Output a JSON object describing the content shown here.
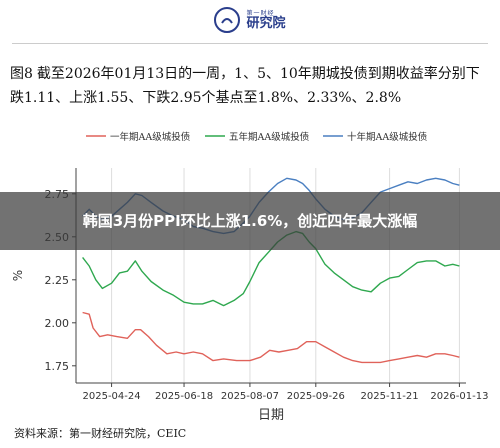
{
  "brand": {
    "sub_text": "第一财经",
    "name": "研究院",
    "icon": "circle-logo-icon"
  },
  "caption": {
    "figure_no": "图8",
    "text": "截至2026年01月13日的一周，1、5、10年期城投债到期收益率分别下跌1.11、上涨1.55、下跌2.95个基点至1.8%、2.33%、2.8%"
  },
  "overlay": {
    "title": "韩国3月份PPI环比上涨1.6%，创近四年最大涨幅"
  },
  "source": {
    "text": "资料来源：第一财经研究院，CEIC"
  },
  "chart_data": {
    "type": "line",
    "xlabel": "日期",
    "ylabel": "%",
    "ylim": [
      1.65,
      2.9
    ],
    "yticks": [
      1.75,
      2.0,
      2.25,
      2.5,
      2.75
    ],
    "ytick_labels": [
      "1.75",
      "2.00",
      "2.25",
      "2.50",
      "2.75"
    ],
    "xticks": [
      "2025-04-24",
      "2025-06-18",
      "2025-08-07",
      "2025-09-26",
      "2025-11-21",
      "2026-01-13"
    ],
    "grid": "vertical",
    "legend_position": "top",
    "series": [
      {
        "name": "一年期AA级城投债",
        "color": "#e0625a",
        "points": [
          [
            "2025-04-02",
            2.06
          ],
          [
            "2025-04-07",
            2.05
          ],
          [
            "2025-04-10",
            1.97
          ],
          [
            "2025-04-15",
            1.92
          ],
          [
            "2025-04-21",
            1.93
          ],
          [
            "2025-04-28",
            1.92
          ],
          [
            "2025-05-06",
            1.91
          ],
          [
            "2025-05-12",
            1.96
          ],
          [
            "2025-05-16",
            1.96
          ],
          [
            "2025-05-22",
            1.92
          ],
          [
            "2025-05-28",
            1.87
          ],
          [
            "2025-06-05",
            1.82
          ],
          [
            "2025-06-12",
            1.83
          ],
          [
            "2025-06-18",
            1.82
          ],
          [
            "2025-06-25",
            1.83
          ],
          [
            "2025-07-02",
            1.82
          ],
          [
            "2025-07-10",
            1.78
          ],
          [
            "2025-07-18",
            1.79
          ],
          [
            "2025-07-28",
            1.78
          ],
          [
            "2025-08-07",
            1.78
          ],
          [
            "2025-08-15",
            1.8
          ],
          [
            "2025-08-22",
            1.84
          ],
          [
            "2025-08-29",
            1.83
          ],
          [
            "2025-09-05",
            1.84
          ],
          [
            "2025-09-12",
            1.85
          ],
          [
            "2025-09-19",
            1.89
          ],
          [
            "2025-09-26",
            1.89
          ],
          [
            "2025-10-03",
            1.86
          ],
          [
            "2025-10-10",
            1.83
          ],
          [
            "2025-10-17",
            1.8
          ],
          [
            "2025-10-24",
            1.78
          ],
          [
            "2025-10-31",
            1.77
          ],
          [
            "2025-11-07",
            1.77
          ],
          [
            "2025-11-14",
            1.77
          ],
          [
            "2025-11-21",
            1.78
          ],
          [
            "2025-11-28",
            1.79
          ],
          [
            "2025-12-05",
            1.8
          ],
          [
            "2025-12-12",
            1.81
          ],
          [
            "2025-12-19",
            1.8
          ],
          [
            "2025-12-26",
            1.82
          ],
          [
            "2026-01-02",
            1.82
          ],
          [
            "2026-01-08",
            1.81
          ],
          [
            "2026-01-13",
            1.8
          ]
        ]
      },
      {
        "name": "五年期AA级城投债",
        "color": "#2fa84f",
        "points": [
          [
            "2025-04-02",
            2.38
          ],
          [
            "2025-04-07",
            2.33
          ],
          [
            "2025-04-12",
            2.25
          ],
          [
            "2025-04-17",
            2.2
          ],
          [
            "2025-04-24",
            2.23
          ],
          [
            "2025-04-30",
            2.29
          ],
          [
            "2025-05-06",
            2.3
          ],
          [
            "2025-05-12",
            2.36
          ],
          [
            "2025-05-17",
            2.3
          ],
          [
            "2025-05-24",
            2.24
          ],
          [
            "2025-06-02",
            2.19
          ],
          [
            "2025-06-10",
            2.16
          ],
          [
            "2025-06-18",
            2.12
          ],
          [
            "2025-06-25",
            2.11
          ],
          [
            "2025-07-02",
            2.11
          ],
          [
            "2025-07-10",
            2.13
          ],
          [
            "2025-07-18",
            2.1
          ],
          [
            "2025-07-26",
            2.13
          ],
          [
            "2025-08-02",
            2.17
          ],
          [
            "2025-08-07",
            2.24
          ],
          [
            "2025-08-14",
            2.35
          ],
          [
            "2025-08-21",
            2.41
          ],
          [
            "2025-08-28",
            2.47
          ],
          [
            "2025-09-04",
            2.51
          ],
          [
            "2025-09-11",
            2.53
          ],
          [
            "2025-09-16",
            2.52
          ],
          [
            "2025-09-21",
            2.47
          ],
          [
            "2025-09-26",
            2.43
          ],
          [
            "2025-10-03",
            2.34
          ],
          [
            "2025-10-10",
            2.29
          ],
          [
            "2025-10-17",
            2.25
          ],
          [
            "2025-10-24",
            2.21
          ],
          [
            "2025-10-31",
            2.19
          ],
          [
            "2025-11-07",
            2.18
          ],
          [
            "2025-11-14",
            2.23
          ],
          [
            "2025-11-21",
            2.26
          ],
          [
            "2025-11-28",
            2.27
          ],
          [
            "2025-12-05",
            2.31
          ],
          [
            "2025-12-12",
            2.35
          ],
          [
            "2025-12-19",
            2.36
          ],
          [
            "2025-12-26",
            2.36
          ],
          [
            "2026-01-02",
            2.33
          ],
          [
            "2026-01-08",
            2.34
          ],
          [
            "2026-01-13",
            2.33
          ]
        ]
      },
      {
        "name": "十年期AA级城投债",
        "color": "#4a7fc1",
        "points": [
          [
            "2025-04-02",
            2.62
          ],
          [
            "2025-04-07",
            2.66
          ],
          [
            "2025-04-12",
            2.62
          ],
          [
            "2025-04-17",
            2.6
          ],
          [
            "2025-04-24",
            2.62
          ],
          [
            "2025-04-30",
            2.66
          ],
          [
            "2025-05-06",
            2.7
          ],
          [
            "2025-05-12",
            2.75
          ],
          [
            "2025-05-17",
            2.74
          ],
          [
            "2025-05-24",
            2.7
          ],
          [
            "2025-06-02",
            2.65
          ],
          [
            "2025-06-10",
            2.62
          ],
          [
            "2025-06-18",
            2.6
          ],
          [
            "2025-06-25",
            2.56
          ],
          [
            "2025-07-02",
            2.55
          ],
          [
            "2025-07-10",
            2.53
          ],
          [
            "2025-07-18",
            2.52
          ],
          [
            "2025-07-26",
            2.53
          ],
          [
            "2025-08-02",
            2.58
          ],
          [
            "2025-08-07",
            2.62
          ],
          [
            "2025-08-14",
            2.7
          ],
          [
            "2025-08-21",
            2.76
          ],
          [
            "2025-08-28",
            2.81
          ],
          [
            "2025-09-04",
            2.84
          ],
          [
            "2025-09-11",
            2.83
          ],
          [
            "2025-09-16",
            2.81
          ],
          [
            "2025-09-21",
            2.77
          ],
          [
            "2025-09-26",
            2.72
          ],
          [
            "2025-10-03",
            2.66
          ],
          [
            "2025-10-10",
            2.62
          ],
          [
            "2025-10-17",
            2.6
          ],
          [
            "2025-10-24",
            2.61
          ],
          [
            "2025-10-31",
            2.64
          ],
          [
            "2025-11-07",
            2.7
          ],
          [
            "2025-11-14",
            2.76
          ],
          [
            "2025-11-21",
            2.78
          ],
          [
            "2025-11-28",
            2.8
          ],
          [
            "2025-12-05",
            2.82
          ],
          [
            "2025-12-12",
            2.81
          ],
          [
            "2025-12-19",
            2.83
          ],
          [
            "2025-12-26",
            2.84
          ],
          [
            "2026-01-02",
            2.83
          ],
          [
            "2026-01-08",
            2.81
          ],
          [
            "2026-01-13",
            2.8
          ]
        ]
      }
    ]
  }
}
